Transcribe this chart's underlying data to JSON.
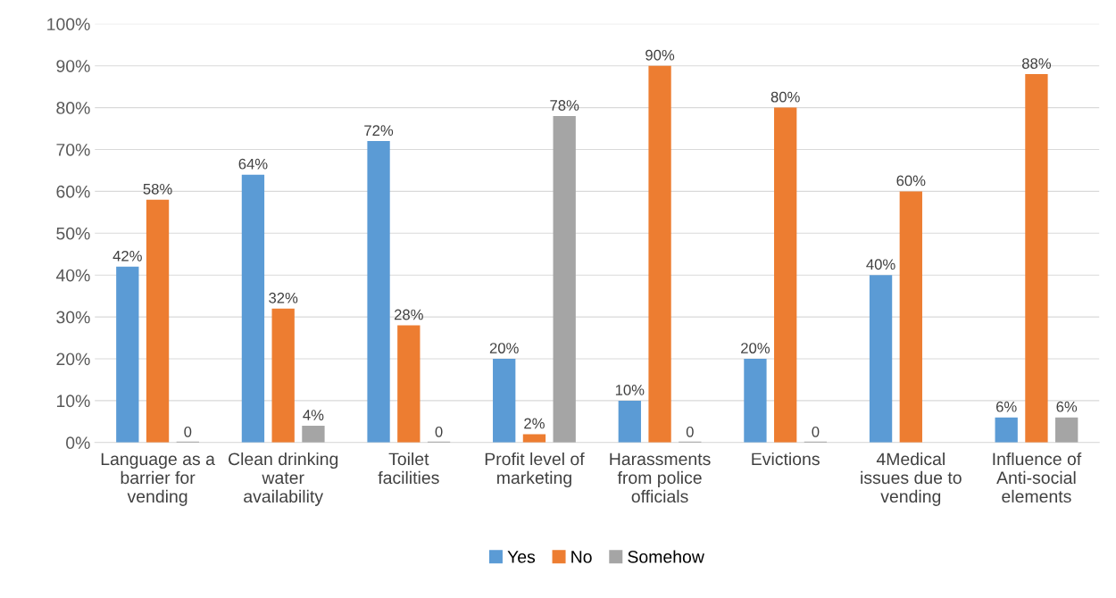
{
  "chart_data": {
    "type": "bar",
    "categories": [
      "Language as a\nbarrier for\nvending",
      "Clean drinking\nwater\navailability",
      "Toilet\nfacilities",
      "Profit level of\nmarketing",
      "Harassments\nfrom police\nofficials",
      "Evictions",
      "4Medical\nissues due to\nvending",
      "Influence of\nAnti-social\nelements"
    ],
    "series": [
      {
        "name": "Yes",
        "color": "#5b9bd5",
        "values": [
          42,
          64,
          72,
          20,
          10,
          20,
          40,
          6
        ],
        "value_labels": [
          "42%",
          "64%",
          "72%",
          "20%",
          "10%",
          "20%",
          "40%",
          "6%"
        ]
      },
      {
        "name": "No",
        "color": "#ed7d31",
        "values": [
          58,
          32,
          28,
          2,
          90,
          80,
          60,
          88
        ],
        "value_labels": [
          "58%",
          "32%",
          "28%",
          "2%",
          "90%",
          "80%",
          "60%",
          "88%"
        ]
      },
      {
        "name": "Somehow",
        "color": "#a5a5a5",
        "values": [
          0,
          4,
          0,
          78,
          0,
          0,
          null,
          6
        ],
        "value_labels": [
          "0",
          "4%",
          "0",
          "78%",
          "0",
          "0",
          null,
          "6%"
        ]
      }
    ],
    "ylim": [
      0,
      100
    ],
    "yticks": [
      {
        "value": 0,
        "label": "0%"
      },
      {
        "value": 10,
        "label": "10%"
      },
      {
        "value": 20,
        "label": "20%"
      },
      {
        "value": 30,
        "label": "30%"
      },
      {
        "value": 40,
        "label": "40%"
      },
      {
        "value": 50,
        "label": "50%"
      },
      {
        "value": 60,
        "label": "60%"
      },
      {
        "value": 70,
        "label": "70%"
      },
      {
        "value": 80,
        "label": "80%"
      },
      {
        "value": 90,
        "label": "90%"
      },
      {
        "value": 100,
        "label": "100%"
      }
    ],
    "grid": "y",
    "legend": "bottom"
  }
}
